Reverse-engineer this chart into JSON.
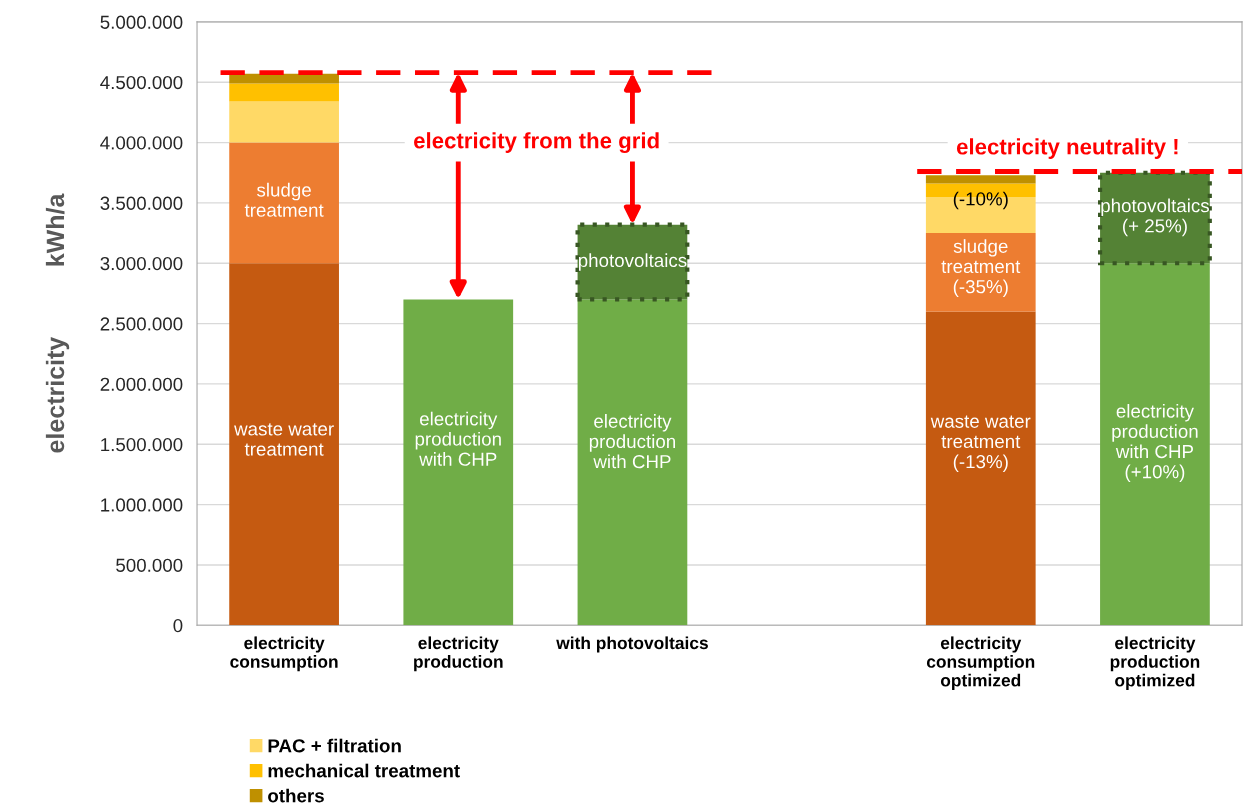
{
  "chart_data": {
    "type": "bar",
    "stacked": true,
    "ylabel": "electricity          kWh/a",
    "categories": [
      "electricity\nconsumption",
      "electricity\nproduction",
      "with photovoltaics",
      null,
      "electricity\nconsumption\noptimized",
      "electricity\nproduction\noptimized"
    ],
    "series": [
      {
        "color": "#c55a11",
        "values": [
          3000000,
          null,
          null,
          null,
          2600000,
          null
        ]
      },
      {
        "color": "#ed7d31",
        "values": [
          1000000,
          null,
          null,
          null,
          650000,
          null
        ]
      },
      {
        "name": "PAC + filtration",
        "color": "#ffd966",
        "values": [
          340000,
          null,
          null,
          null,
          300000,
          null
        ]
      },
      {
        "name": "mechanical treatment",
        "color": "#ffc000",
        "values": [
          150000,
          null,
          null,
          null,
          110000,
          null
        ]
      },
      {
        "name": "others",
        "color": "#bf9000",
        "values": [
          80000,
          null,
          null,
          null,
          70000,
          null
        ]
      },
      {
        "color": "#70ad47",
        "values": [
          null,
          2700000,
          2700000,
          null,
          null,
          3000000
        ]
      },
      {
        "color": "#548235",
        "line_style": "dotted",
        "values": [
          null,
          null,
          620000,
          null,
          null,
          750000
        ]
      }
    ],
    "annotations": [
      "waste water\ntreatment",
      "sludge\ntreatment",
      "electricity\nproduction\nwith CHP",
      "electricity\nproduction\nwith CHP",
      "photovoltaics",
      "waste water\ntreatment\n(-13%)",
      "sludge\ntreatment\n(-35%)",
      "(-10%)",
      "electricity\nproduction\nwith CHP\n(+10%)",
      "photovoltaics\n(+ 25%)"
    ],
    "ylim": [
      0,
      5000000
    ],
    "yticks": [
      {
        "value": 0,
        "label": "0"
      },
      {
        "value": 500000,
        "label": "500.000"
      },
      {
        "value": 1000000,
        "label": "1.000.000"
      },
      {
        "value": 1500000,
        "label": "1.500.000"
      },
      {
        "value": 2000000,
        "label": "2.000.000"
      },
      {
        "value": 2500000,
        "label": "2.500.000"
      },
      {
        "value": 3000000,
        "label": "3.000.000"
      },
      {
        "value": 3500000,
        "label": "3.500.000"
      },
      {
        "value": 4000000,
        "label": "4.000.000"
      },
      {
        "value": 4500000,
        "label": "4.500.000"
      },
      {
        "value": 5000000,
        "label": "5.000.000"
      }
    ],
    "ref_lines": [
      {
        "axis": "y",
        "value": 4580000,
        "label": "electricity from the grid",
        "color": "#ff0000",
        "line_style": "dashed"
      },
      {
        "axis": "y",
        "value": 3760000,
        "label": "electricity neutrality !",
        "color": "#ff0000",
        "line_style": "dashed"
      }
    ],
    "grid": "y",
    "legend": "bottom left"
  }
}
